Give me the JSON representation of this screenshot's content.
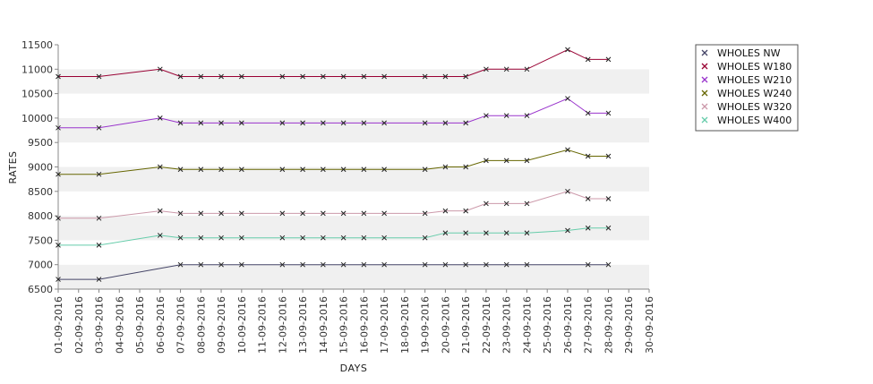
{
  "chart_data": {
    "type": "line",
    "xlabel": "DAYS",
    "ylabel": "RATES",
    "ylim": [
      6500,
      11500
    ],
    "y_ticks": [
      6500,
      7000,
      7500,
      8000,
      8500,
      9000,
      9500,
      10000,
      10500,
      11000,
      11500
    ],
    "x_ticks": [
      "01-09-2016",
      "02-09-2016",
      "03-09-2016",
      "04-09-2016",
      "05-09-2016",
      "06-09-2016",
      "07-09-2016",
      "08-09-2016",
      "09-09-2016",
      "10-09-2016",
      "11-09-2016",
      "12-09-2016",
      "13-09-2016",
      "14-09-2016",
      "15-09-2016",
      "16-09-2016",
      "17-09-2016",
      "18-09-2016",
      "19-09-2016",
      "20-09-2016",
      "21-09-2016",
      "22-09-2016",
      "23-09-2016",
      "24-09-2016",
      "25-09-2016",
      "26-09-2016",
      "27-09-2016",
      "28-09-2016",
      "29-09-2016",
      "30-09-2016"
    ],
    "grid": "alternating horizontal bands",
    "legend_position": "top-right",
    "series": [
      {
        "name": "WHOLES NW",
        "color": "#444466",
        "x": [
          "01-09-2016",
          "03-09-2016",
          "07-09-2016",
          "08-09-2016",
          "09-09-2016",
          "10-09-2016",
          "12-09-2016",
          "13-09-2016",
          "14-09-2016",
          "15-09-2016",
          "16-09-2016",
          "17-09-2016",
          "19-09-2016",
          "20-09-2016",
          "21-09-2016",
          "22-09-2016",
          "23-09-2016",
          "24-09-2016",
          "27-09-2016",
          "28-09-2016"
        ],
        "values": [
          6700,
          6700,
          7000,
          7000,
          7000,
          7000,
          7000,
          7000,
          7000,
          7000,
          7000,
          7000,
          7000,
          7000,
          7000,
          7000,
          7000,
          7000,
          7000,
          7000
        ]
      },
      {
        "name": "WHOLES W180",
        "color": "#990033",
        "x": [
          "01-09-2016",
          "03-09-2016",
          "06-09-2016",
          "07-09-2016",
          "08-09-2016",
          "09-09-2016",
          "10-09-2016",
          "12-09-2016",
          "13-09-2016",
          "14-09-2016",
          "15-09-2016",
          "16-09-2016",
          "17-09-2016",
          "19-09-2016",
          "20-09-2016",
          "21-09-2016",
          "22-09-2016",
          "23-09-2016",
          "24-09-2016",
          "26-09-2016",
          "27-09-2016",
          "28-09-2016"
        ],
        "values": [
          10850,
          10850,
          11000,
          10850,
          10850,
          10850,
          10850,
          10850,
          10850,
          10850,
          10850,
          10850,
          10850,
          10850,
          10850,
          10850,
          11000,
          11000,
          11000,
          11400,
          11200,
          11200
        ]
      },
      {
        "name": "WHOLES W210",
        "color": "#9933cc",
        "x": [
          "01-09-2016",
          "03-09-2016",
          "06-09-2016",
          "07-09-2016",
          "08-09-2016",
          "09-09-2016",
          "10-09-2016",
          "12-09-2016",
          "13-09-2016",
          "14-09-2016",
          "15-09-2016",
          "16-09-2016",
          "17-09-2016",
          "19-09-2016",
          "20-09-2016",
          "21-09-2016",
          "22-09-2016",
          "23-09-2016",
          "24-09-2016",
          "26-09-2016",
          "27-09-2016",
          "28-09-2016"
        ],
        "values": [
          9800,
          9800,
          10000,
          9900,
          9900,
          9900,
          9900,
          9900,
          9900,
          9900,
          9900,
          9900,
          9900,
          9900,
          9900,
          9900,
          10050,
          10050,
          10050,
          10400,
          10100,
          10100
        ]
      },
      {
        "name": "WHOLES W240",
        "color": "#666600",
        "x": [
          "01-09-2016",
          "03-09-2016",
          "06-09-2016",
          "07-09-2016",
          "08-09-2016",
          "09-09-2016",
          "10-09-2016",
          "12-09-2016",
          "13-09-2016",
          "14-09-2016",
          "15-09-2016",
          "16-09-2016",
          "17-09-2016",
          "19-09-2016",
          "20-09-2016",
          "21-09-2016",
          "22-09-2016",
          "23-09-2016",
          "24-09-2016",
          "26-09-2016",
          "27-09-2016",
          "28-09-2016"
        ],
        "values": [
          8850,
          8850,
          9000,
          8950,
          8950,
          8950,
          8950,
          8950,
          8950,
          8950,
          8950,
          8950,
          8950,
          8950,
          9000,
          9000,
          9130,
          9130,
          9130,
          9350,
          9220,
          9220
        ]
      },
      {
        "name": "WHOLES W320",
        "color": "#cc99aa",
        "x": [
          "01-09-2016",
          "03-09-2016",
          "06-09-2016",
          "07-09-2016",
          "08-09-2016",
          "09-09-2016",
          "10-09-2016",
          "12-09-2016",
          "13-09-2016",
          "14-09-2016",
          "15-09-2016",
          "16-09-2016",
          "17-09-2016",
          "19-09-2016",
          "20-09-2016",
          "21-09-2016",
          "22-09-2016",
          "23-09-2016",
          "24-09-2016",
          "26-09-2016",
          "27-09-2016",
          "28-09-2016"
        ],
        "values": [
          7950,
          7950,
          8100,
          8050,
          8050,
          8050,
          8050,
          8050,
          8050,
          8050,
          8050,
          8050,
          8050,
          8050,
          8100,
          8100,
          8250,
          8250,
          8250,
          8500,
          8350,
          8350
        ]
      },
      {
        "name": "WHOLES W400",
        "color": "#66ccaa",
        "x": [
          "01-09-2016",
          "03-09-2016",
          "06-09-2016",
          "07-09-2016",
          "08-09-2016",
          "09-09-2016",
          "10-09-2016",
          "12-09-2016",
          "13-09-2016",
          "14-09-2016",
          "15-09-2016",
          "16-09-2016",
          "17-09-2016",
          "19-09-2016",
          "20-09-2016",
          "21-09-2016",
          "22-09-2016",
          "23-09-2016",
          "24-09-2016",
          "26-09-2016",
          "27-09-2016",
          "28-09-2016"
        ],
        "values": [
          7400,
          7400,
          7600,
          7550,
          7550,
          7550,
          7550,
          7550,
          7550,
          7550,
          7550,
          7550,
          7550,
          7550,
          7650,
          7650,
          7650,
          7650,
          7650,
          7700,
          7750,
          7750
        ]
      }
    ]
  }
}
